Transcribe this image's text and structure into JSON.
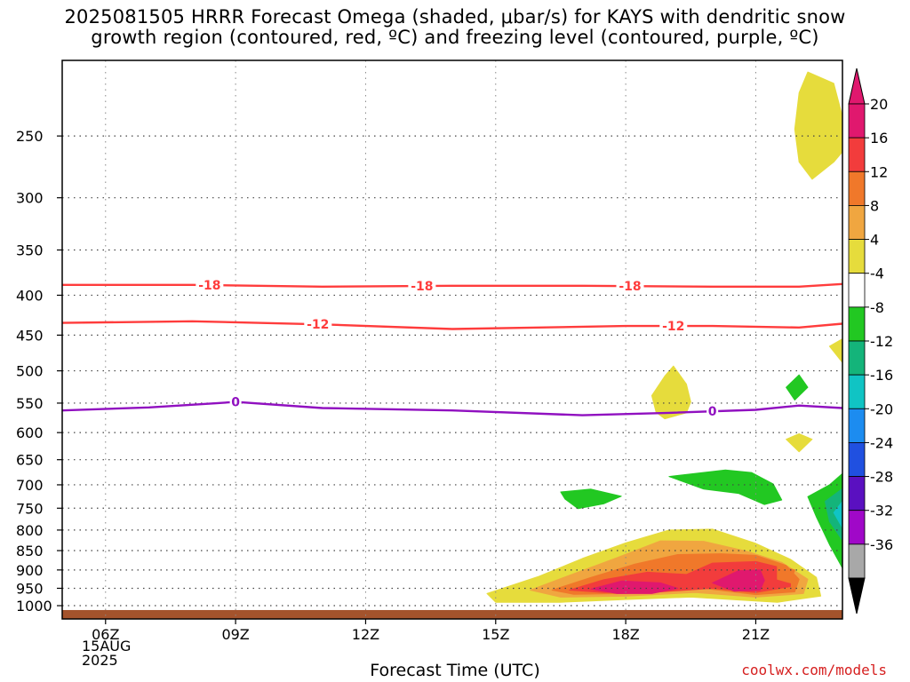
{
  "title": {
    "line1": "2025081505 HRRR Forecast Omega (shaded, μbar/s) for KAYS with dendritic snow",
    "line2": "growth region (contoured, red, ºC) and freezing level (contoured, purple, ºC)"
  },
  "credit": "coolwx.com/models",
  "chart_data": {
    "type": "heatmap",
    "xlabel": "Forecast Time (UTC)",
    "ylabel": "",
    "x_ticks": [
      {
        "hour": 6,
        "label": "06Z"
      },
      {
        "hour": 9,
        "label": "09Z"
      },
      {
        "hour": 12,
        "label": "12Z"
      },
      {
        "hour": 15,
        "label": "15Z"
      },
      {
        "hour": 18,
        "label": "18Z"
      },
      {
        "hour": 21,
        "label": "21Z"
      }
    ],
    "x_date_label": [
      "15AUG",
      "2025"
    ],
    "xlim_hours": [
      5.0,
      23.0
    ],
    "y_ticks": [
      250,
      300,
      350,
      400,
      450,
      500,
      550,
      600,
      650,
      700,
      750,
      800,
      850,
      900,
      950,
      1000
    ],
    "ylim_hpa": [
      200,
      1040
    ],
    "y_scale": "log-pressure (inverted)",
    "grid": true,
    "colorbar": {
      "labels": [
        "20",
        "16",
        "12",
        "8",
        "4",
        "-4",
        "-8",
        "-12",
        "-16",
        "-20",
        "-24",
        "-28",
        "-32",
        "-36"
      ],
      "colors": [
        "#e0186e",
        "#f23c3c",
        "#f0782a",
        "#f0a640",
        "#e6dc3c",
        "#ffffff",
        "#22c822",
        "#14b47a",
        "#10c4c4",
        "#1c8cf0",
        "#2050e0",
        "#5a10c0",
        "#a008c8",
        "#a8a8a8"
      ],
      "top_arrow_color": "#e0186e",
      "bottom_arrow_color": "#000000"
    },
    "contours": [
      {
        "color": "#ff3c3c",
        "label": "-18",
        "points": [
          [
            5,
            388
          ],
          [
            8,
            388
          ],
          [
            11,
            390
          ],
          [
            14,
            389
          ],
          [
            17,
            389
          ],
          [
            20,
            390
          ],
          [
            22,
            390
          ],
          [
            23,
            387
          ]
        ],
        "label_hours": [
          8.4,
          13.3,
          18.1
        ]
      },
      {
        "color": "#ff3c3c",
        "label": "-12",
        "points": [
          [
            5,
            434
          ],
          [
            8,
            432
          ],
          [
            11,
            436
          ],
          [
            14,
            442
          ],
          [
            16,
            440
          ],
          [
            18,
            438
          ],
          [
            20,
            438
          ],
          [
            22,
            440
          ],
          [
            23,
            435
          ]
        ],
        "label_hours": [
          10.9,
          19.1
        ]
      },
      {
        "color": "#9010c0",
        "label": "0",
        "points": [
          [
            5,
            562
          ],
          [
            7,
            557
          ],
          [
            8.6,
            550
          ],
          [
            9,
            548
          ],
          [
            11,
            558
          ],
          [
            14,
            562
          ],
          [
            17,
            570
          ],
          [
            19,
            566
          ],
          [
            21,
            561
          ],
          [
            22,
            554
          ],
          [
            23,
            558
          ]
        ],
        "label_hours": [
          9.0,
          20.0
        ]
      }
    ],
    "shaded_regions": [
      {
        "value": "4",
        "color": "#e6dc3c",
        "points": [
          [
            22.2,
            207
          ],
          [
            22.8,
            214
          ],
          [
            23,
            236
          ],
          [
            23,
            262
          ],
          [
            22.8,
            270
          ],
          [
            22.3,
            284
          ],
          [
            22.0,
            270
          ],
          [
            21.9,
            245
          ],
          [
            22.0,
            220
          ]
        ]
      },
      {
        "value": "4",
        "color": "#e6dc3c",
        "points": [
          [
            23,
            455
          ],
          [
            22.7,
            465
          ],
          [
            23,
            488
          ]
        ]
      },
      {
        "value": "4",
        "color": "#e6dc3c",
        "points": [
          [
            19.1,
            493
          ],
          [
            19.4,
            520
          ],
          [
            19.5,
            548
          ],
          [
            19.4,
            566
          ],
          [
            18.9,
            576
          ],
          [
            18.7,
            565
          ],
          [
            18.6,
            538
          ],
          [
            18.9,
            508
          ]
        ]
      },
      {
        "value": "4",
        "color": "#e6dc3c",
        "points": [
          [
            22.0,
            602
          ],
          [
            22.3,
            612
          ],
          [
            22.0,
            635
          ],
          [
            21.7,
            612
          ]
        ]
      },
      {
        "value": "-4",
        "color": "#22c822",
        "points": [
          [
            22.0,
            506
          ],
          [
            22.2,
            525
          ],
          [
            21.9,
            545
          ],
          [
            21.7,
            525
          ]
        ]
      },
      {
        "value": "-4",
        "color": "#22c822",
        "points": [
          [
            16.5,
            715
          ],
          [
            17.2,
            709
          ],
          [
            17.9,
            724
          ],
          [
            17.5,
            740
          ],
          [
            16.9,
            751
          ],
          [
            16.6,
            730
          ]
        ]
      },
      {
        "value": "-4",
        "color": "#22c822",
        "points": [
          [
            19.0,
            683
          ],
          [
            20.3,
            670
          ],
          [
            20.9,
            675
          ],
          [
            21.4,
            698
          ],
          [
            21.6,
            732
          ],
          [
            21.2,
            742
          ],
          [
            20.6,
            718
          ],
          [
            19.8,
            709
          ]
        ]
      },
      {
        "value": "-4",
        "color": "#22c822",
        "points": [
          [
            23,
            677
          ],
          [
            22.7,
            700
          ],
          [
            22.2,
            725
          ],
          [
            22.4,
            770
          ],
          [
            22.7,
            835
          ],
          [
            23,
            895
          ]
        ]
      },
      {
        "value": "-8",
        "color": "#14b47a",
        "points": [
          [
            23,
            708
          ],
          [
            22.6,
            735
          ],
          [
            22.7,
            780
          ],
          [
            23,
            825
          ]
        ]
      },
      {
        "value": "-12",
        "color": "#10c4c4",
        "points": [
          [
            23,
            735
          ],
          [
            22.8,
            760
          ],
          [
            23,
            795
          ]
        ]
      },
      {
        "value": "4",
        "color": "#e6dc3c",
        "points": [
          [
            14.8,
            965
          ],
          [
            16.0,
            917
          ],
          [
            17.0,
            870
          ],
          [
            18.0,
            831
          ],
          [
            19.0,
            800
          ],
          [
            20.0,
            798
          ],
          [
            21.0,
            832
          ],
          [
            21.8,
            872
          ],
          [
            22.4,
            920
          ],
          [
            22.5,
            972
          ],
          [
            21.5,
            990
          ],
          [
            19.5,
            975
          ],
          [
            18.0,
            982
          ],
          [
            16.5,
            990
          ],
          [
            15.0,
            990
          ]
        ]
      },
      {
        "value": "8",
        "color": "#f0a640",
        "points": [
          [
            15.8,
            955
          ],
          [
            16.8,
            910
          ],
          [
            17.8,
            868
          ],
          [
            18.8,
            826
          ],
          [
            19.8,
            827
          ],
          [
            20.8,
            852
          ],
          [
            21.6,
            880
          ],
          [
            22.2,
            925
          ],
          [
            22.1,
            965
          ],
          [
            21.0,
            975
          ],
          [
            19.6,
            962
          ],
          [
            18.0,
            972
          ],
          [
            16.5,
            975
          ]
        ]
      },
      {
        "value": "12",
        "color": "#f0782a",
        "points": [
          [
            16.3,
            955
          ],
          [
            17.2,
            920
          ],
          [
            18.2,
            885
          ],
          [
            19.2,
            860
          ],
          [
            20.2,
            858
          ],
          [
            21.0,
            862
          ],
          [
            21.7,
            888
          ],
          [
            22.0,
            925
          ],
          [
            21.9,
            960
          ],
          [
            21.0,
            968
          ],
          [
            19.8,
            950
          ],
          [
            18.0,
            965
          ],
          [
            16.8,
            967
          ]
        ]
      },
      {
        "value": "16",
        "color": "#f23c3c",
        "points": [
          [
            16.7,
            955
          ],
          [
            17.5,
            926
          ],
          [
            18.5,
            906
          ],
          [
            19.4,
            912
          ],
          [
            20.0,
            882
          ],
          [
            21.0,
            878
          ],
          [
            21.8,
            900
          ],
          [
            21.8,
            945
          ],
          [
            21.0,
            962
          ],
          [
            20.0,
            950
          ],
          [
            18.8,
            960
          ],
          [
            17.5,
            962
          ]
        ]
      },
      {
        "value": "20",
        "color": "#e0186e",
        "points": [
          [
            17.2,
            952
          ],
          [
            17.9,
            930
          ],
          [
            18.8,
            935
          ],
          [
            19.2,
            950
          ],
          [
            18.6,
            965
          ],
          [
            17.8,
            965
          ]
        ]
      },
      {
        "value": "20",
        "color": "#e0186e",
        "points": [
          [
            20.0,
            935
          ],
          [
            20.6,
            902
          ],
          [
            21.1,
            900
          ],
          [
            21.2,
            928
          ],
          [
            21.1,
            955
          ],
          [
            20.5,
            958
          ]
        ]
      },
      {
        "value": "12",
        "color": "#f0782a",
        "points": [
          [
            21.5,
            890
          ],
          [
            21.9,
            900
          ],
          [
            21.8,
            935
          ],
          [
            21.5,
            925
          ]
        ]
      }
    ],
    "ground": {
      "color": "#a4532c",
      "top_hpa": 1013
    }
  }
}
